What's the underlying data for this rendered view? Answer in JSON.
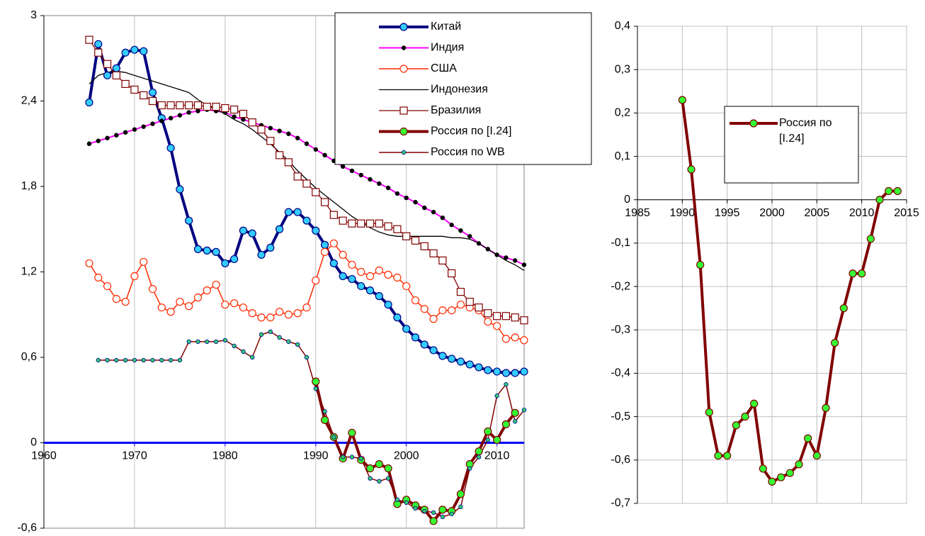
{
  "chart_data": [
    {
      "type": "line",
      "x": [
        1965,
        1966,
        1967,
        1968,
        1969,
        1970,
        1971,
        1972,
        1973,
        1974,
        1975,
        1976,
        1977,
        1978,
        1979,
        1980,
        1981,
        1982,
        1983,
        1984,
        1985,
        1986,
        1987,
        1988,
        1989,
        1990,
        1991,
        1992,
        1993,
        1994,
        1995,
        1996,
        1997,
        1998,
        1999,
        2000,
        2001,
        2002,
        2003,
        2004,
        2005,
        2006,
        2007,
        2008,
        2009,
        2010,
        2011,
        2012,
        2013
      ],
      "xlim": [
        1960,
        2013
      ],
      "xticks": [
        1960,
        1970,
        1980,
        1990,
        2000,
        2010
      ],
      "ylim": [
        -0.6,
        3
      ],
      "yticks": [
        {
          "value": -0.6,
          "label": "-0,6"
        },
        0,
        {
          "value": 0.6,
          "label": "0,6"
        },
        {
          "value": 1.2,
          "label": "1,2"
        },
        {
          "value": 1.8,
          "label": "1,8"
        },
        {
          "value": 2.4,
          "label": "2,4"
        },
        3
      ],
      "grid": true,
      "zero_line_color": "#0000ff",
      "legend": "upper right",
      "series": [
        {
          "name": "Китай",
          "color": "#000080",
          "marker": "circle",
          "marker_color": "#33ccff",
          "width": 4,
          "values": [
            2.39,
            2.8,
            2.58,
            2.63,
            2.74,
            2.76,
            2.75,
            2.46,
            2.28,
            2.07,
            1.78,
            1.56,
            1.36,
            1.35,
            1.34,
            1.26,
            1.29,
            1.49,
            1.47,
            1.32,
            1.37,
            1.5,
            1.62,
            1.62,
            1.56,
            1.49,
            1.39,
            1.26,
            1.17,
            1.15,
            1.1,
            1.07,
            1.03,
            0.97,
            0.88,
            0.8,
            0.74,
            0.69,
            0.65,
            0.61,
            0.59,
            0.57,
            0.55,
            0.53,
            0.51,
            0.5,
            0.49,
            0.49,
            0.5
          ]
        },
        {
          "name": "Индия",
          "color": "#ff00ff",
          "marker": "dot",
          "marker_color": "#000000",
          "width": 2,
          "values": [
            2.1,
            2.12,
            2.14,
            2.16,
            2.18,
            2.2,
            2.22,
            2.24,
            2.26,
            2.28,
            2.3,
            2.32,
            2.33,
            2.34,
            2.33,
            2.32,
            2.29,
            2.27,
            2.25,
            2.23,
            2.21,
            2.19,
            2.17,
            2.14,
            2.1,
            2.06,
            2.02,
            1.98,
            1.94,
            1.91,
            1.88,
            1.85,
            1.82,
            1.79,
            1.75,
            1.72,
            1.69,
            1.65,
            1.62,
            1.58,
            1.53,
            1.49,
            1.45,
            1.4,
            1.36,
            1.32,
            1.3,
            1.28,
            1.25
          ]
        },
        {
          "name": "США",
          "color": "#ff2a00",
          "marker": "circle",
          "marker_color": "#ffffff",
          "width": 1.5,
          "values": [
            1.26,
            1.16,
            1.1,
            1.01,
            0.99,
            1.17,
            1.27,
            1.08,
            0.95,
            0.92,
            0.99,
            0.96,
            1.02,
            1.07,
            1.11,
            0.97,
            0.98,
            0.95,
            0.91,
            0.88,
            0.88,
            0.92,
            0.9,
            0.91,
            0.95,
            1.14,
            1.34,
            1.4,
            1.32,
            1.25,
            1.2,
            1.17,
            1.21,
            1.18,
            1.16,
            1.1,
            1.0,
            0.94,
            0.87,
            0.93,
            0.93,
            0.97,
            0.95,
            0.93,
            0.85,
            0.82,
            0.73,
            0.74,
            0.72
          ]
        },
        {
          "name": "Индонезия",
          "color": "#000000",
          "marker": "none",
          "width": 1.3,
          "values": [
            2.52,
            2.58,
            2.6,
            2.61,
            2.6,
            2.58,
            2.56,
            2.54,
            2.52,
            2.5,
            2.48,
            2.46,
            2.41,
            2.37,
            2.34,
            2.31,
            2.27,
            2.24,
            2.2,
            2.15,
            2.1,
            2.04,
            1.98,
            1.91,
            1.85,
            1.79,
            1.74,
            1.69,
            1.64,
            1.59,
            1.55,
            1.51,
            1.48,
            1.46,
            1.45,
            1.45,
            1.45,
            1.45,
            1.45,
            1.45,
            1.44,
            1.44,
            1.43,
            1.4,
            1.36,
            1.32,
            1.28,
            1.25,
            1.21
          ]
        },
        {
          "name": "Бразилия",
          "color": "#800000",
          "marker": "square",
          "marker_color": "#ffffff",
          "width": 1.3,
          "values": [
            2.83,
            2.74,
            2.66,
            2.58,
            2.52,
            2.48,
            2.44,
            2.4,
            2.37,
            2.37,
            2.37,
            2.37,
            2.37,
            2.36,
            2.36,
            2.35,
            2.34,
            2.31,
            2.25,
            2.2,
            2.12,
            2.02,
            1.97,
            1.87,
            1.82,
            1.76,
            1.69,
            1.6,
            1.56,
            1.54,
            1.54,
            1.54,
            1.54,
            1.52,
            1.5,
            1.45,
            1.42,
            1.38,
            1.33,
            1.28,
            1.19,
            1.06,
            0.99,
            0.95,
            0.91,
            0.89,
            0.89,
            0.88,
            0.86
          ]
        },
        {
          "name": "Россия по [I.24]",
          "color": "#800000",
          "marker": "circle",
          "marker_color": "#33ff33",
          "width": 4,
          "values": [
            null,
            null,
            null,
            null,
            null,
            null,
            null,
            null,
            null,
            null,
            null,
            null,
            null,
            null,
            null,
            null,
            null,
            null,
            null,
            null,
            null,
            null,
            null,
            null,
            null,
            0.43,
            0.16,
            0.04,
            -0.11,
            0.07,
            -0.12,
            -0.18,
            -0.15,
            -0.18,
            -0.43,
            -0.4,
            -0.44,
            -0.47,
            -0.55,
            -0.47,
            -0.48,
            -0.36,
            -0.15,
            -0.06,
            0.08,
            0.02,
            0.13,
            0.21,
            null
          ]
        },
        {
          "name": "Россия по WB",
          "color": "#800000",
          "marker": "dot",
          "marker_color": "#33cc66",
          "width": 1.5,
          "values": [
            null,
            0.58,
            0.58,
            0.58,
            0.58,
            0.58,
            0.58,
            0.58,
            0.58,
            0.58,
            0.58,
            0.71,
            0.71,
            0.71,
            0.71,
            0.72,
            0.68,
            0.64,
            0.6,
            0.76,
            0.78,
            0.74,
            0.71,
            0.69,
            0.6,
            0.38,
            0.22,
            0.04,
            -0.1,
            -0.1,
            -0.11,
            -0.25,
            -0.27,
            -0.25,
            -0.4,
            -0.42,
            -0.46,
            -0.48,
            -0.49,
            -0.52,
            -0.5,
            -0.45,
            -0.18,
            -0.1,
            0.02,
            0.33,
            0.41,
            0.15,
            0.23
          ]
        }
      ]
    },
    {
      "type": "line",
      "x": [
        1990,
        1991,
        1992,
        1993,
        1994,
        1995,
        1996,
        1997,
        1998,
        1999,
        2000,
        2001,
        2002,
        2003,
        2004,
        2005,
        2006,
        2007,
        2008,
        2009,
        2010,
        2011,
        2012,
        2013,
        2014
      ],
      "xlim": [
        1985,
        2015
      ],
      "xticks": [
        1985,
        1990,
        1995,
        2000,
        2005,
        2010,
        2015
      ],
      "ylim": [
        -0.7,
        0.4
      ],
      "yticks": [
        {
          "value": -0.7,
          "label": "-0,7"
        },
        {
          "value": -0.6,
          "label": "-0,6"
        },
        {
          "value": -0.5,
          "label": "-0,5"
        },
        {
          "value": -0.4,
          "label": "-0,4"
        },
        {
          "value": -0.3,
          "label": "-0,3"
        },
        {
          "value": -0.2,
          "label": "-0,2"
        },
        {
          "value": -0.1,
          "label": "-0,1"
        },
        0,
        {
          "value": 0.1,
          "label": "0,1"
        },
        {
          "value": 0.2,
          "label": "0,2"
        },
        {
          "value": 0.3,
          "label": "0,3"
        },
        {
          "value": 0.4,
          "label": "0,4"
        }
      ],
      "grid": true,
      "zero_line_color": "#000000",
      "legend": "center",
      "series": [
        {
          "name": "Россия по [I.24]",
          "color": "#800000",
          "marker": "circle",
          "marker_color": "#33ff33",
          "width": 4,
          "values": [
            0.23,
            0.07,
            -0.15,
            -0.49,
            -0.59,
            -0.59,
            -0.52,
            -0.5,
            -0.47,
            -0.62,
            -0.65,
            -0.64,
            -0.63,
            -0.61,
            -0.55,
            -0.59,
            -0.48,
            -0.33,
            -0.25,
            -0.17,
            -0.17,
            -0.09,
            0.0,
            0.02,
            0.02
          ]
        }
      ]
    }
  ]
}
